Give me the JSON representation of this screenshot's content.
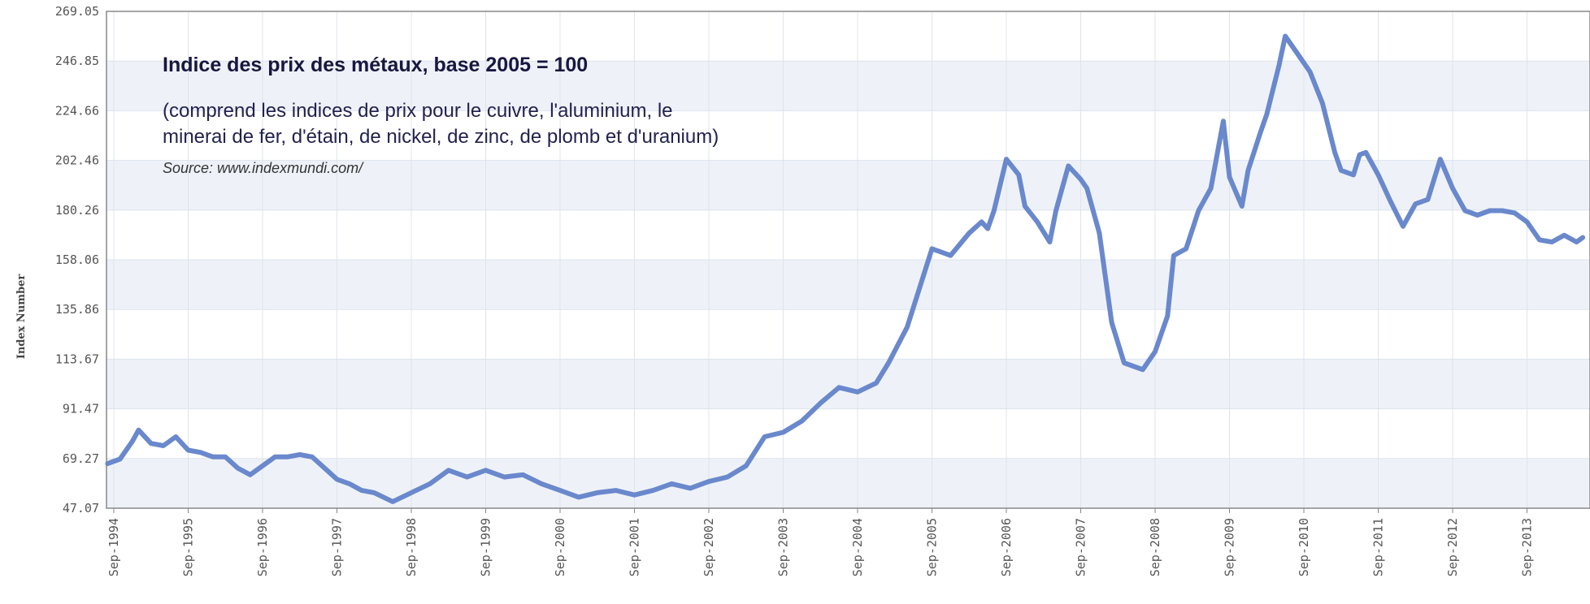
{
  "chart_data": {
    "type": "line",
    "title": "Indice des prix des métaux, base 2005 = 100",
    "subtitle_line1": "(comprend les indices de prix pour le cuivre, l'aluminium, le",
    "subtitle_line2": "minerai de fer, d'étain, de nickel, de zinc, de plomb et d'uranium)",
    "source": "Source: www.indexmundi.com/",
    "ylabel": "Index Number",
    "xlabel": "",
    "ylim": [
      47.07,
      269.05
    ],
    "yticks": [
      "47.07",
      "69.27",
      "91.47",
      "113.67",
      "135.86",
      "158.06",
      "180.26",
      "202.46",
      "224.66",
      "246.85",
      "269.05"
    ],
    "xticks": [
      "Sep-1994",
      "Sep-1995",
      "Sep-1996",
      "Sep-1997",
      "Sep-1998",
      "Sep-1999",
      "Sep-2000",
      "Sep-2001",
      "Sep-2002",
      "Sep-2003",
      "Sep-2004",
      "Sep-2005",
      "Sep-2006",
      "Sep-2007",
      "Sep-2008",
      "Sep-2009",
      "Sep-2010",
      "Sep-2011",
      "Sep-2012",
      "Sep-2013"
    ],
    "grid": true,
    "line_color": "#6a88cc",
    "band_color": "#eef2f8",
    "series": [
      {
        "x": [
          "1994-08",
          "1994-10",
          "1994-12",
          "1995-01",
          "1995-03",
          "1995-05",
          "1995-07",
          "1995-09",
          "1995-11",
          "1996-01",
          "1996-03",
          "1996-05",
          "1996-07",
          "1996-09",
          "1996-11",
          "1997-01",
          "1997-03",
          "1997-05",
          "1997-07",
          "1997-09",
          "1997-11",
          "1998-01",
          "1998-03",
          "1998-06",
          "1998-09",
          "1998-12",
          "1999-03",
          "1999-06",
          "1999-09",
          "1999-12",
          "2000-03",
          "2000-06",
          "2000-09",
          "2000-12",
          "2001-03",
          "2001-06",
          "2001-09",
          "2001-12",
          "2002-03",
          "2002-06",
          "2002-09",
          "2002-12",
          "2003-03",
          "2003-06",
          "2003-09",
          "2003-12",
          "2004-03",
          "2004-06",
          "2004-09",
          "2004-12",
          "2005-02",
          "2005-05",
          "2005-09",
          "2005-12",
          "2006-03",
          "2006-05",
          "2006-06",
          "2006-07",
          "2006-09",
          "2006-11",
          "2006-12",
          "2007-02",
          "2007-04",
          "2007-05",
          "2007-07",
          "2007-09",
          "2007-10",
          "2007-12",
          "2008-02",
          "2008-04",
          "2008-06",
          "2008-07",
          "2008-09",
          "2008-11",
          "2008-12",
          "2009-02",
          "2009-04",
          "2009-06",
          "2009-08",
          "2009-09",
          "2009-11",
          "2009-12",
          "2010-02",
          "2010-03",
          "2010-05",
          "2010-06",
          "2010-08",
          "2010-10",
          "2010-12",
          "2011-02",
          "2011-03",
          "2011-05",
          "2011-06",
          "2011-07",
          "2011-09",
          "2011-11",
          "2012-01",
          "2012-03",
          "2012-05",
          "2012-07",
          "2012-09",
          "2012-11",
          "2013-01",
          "2013-03",
          "2013-05",
          "2013-07",
          "2013-09",
          "2013-11",
          "2014-01",
          "2014-03",
          "2014-05",
          "2014-06"
        ],
        "values": [
          67,
          69,
          77,
          82,
          76,
          75,
          79,
          73,
          72,
          70,
          70,
          65,
          62,
          66,
          70,
          70,
          71,
          70,
          65,
          60,
          58,
          55,
          54,
          50,
          54,
          58,
          64,
          61,
          64,
          61,
          62,
          58,
          55,
          52,
          54,
          55,
          53,
          55,
          58,
          56,
          59,
          61,
          66,
          79,
          81,
          86,
          94,
          101,
          99,
          103,
          112,
          128,
          163,
          160,
          170,
          175,
          172,
          180,
          203,
          196,
          182,
          175,
          166,
          180,
          200,
          194,
          190,
          170,
          130,
          112,
          110,
          109,
          117,
          133,
          160,
          163,
          180,
          190,
          220,
          195,
          182,
          198,
          215,
          223,
          245,
          258,
          250,
          242,
          228,
          206,
          198,
          196,
          205,
          206,
          196,
          184,
          173,
          183,
          185,
          203,
          190,
          180,
          178,
          180,
          180,
          179,
          175,
          167,
          166,
          169,
          166,
          168
        ]
      }
    ]
  }
}
